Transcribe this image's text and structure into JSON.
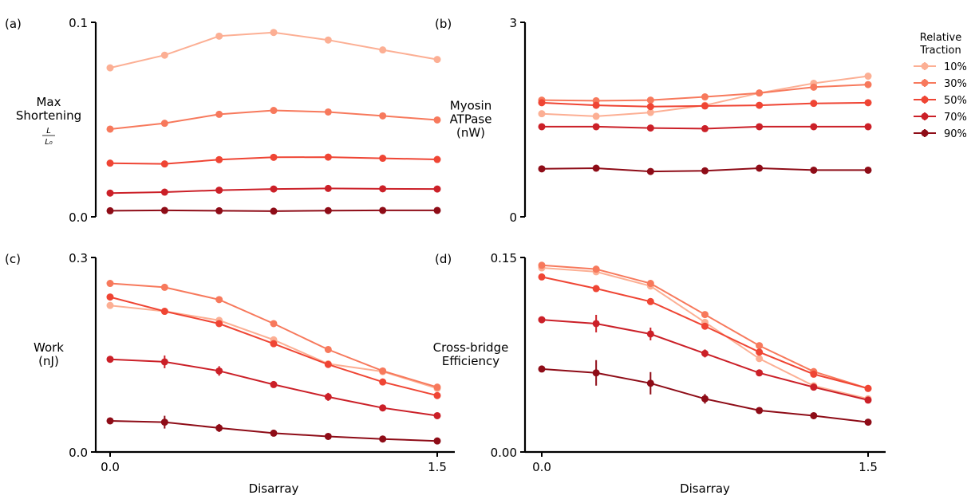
{
  "legend": {
    "title_line1": "Relative",
    "title_line2": "Traction",
    "entries": [
      "10%",
      "30%",
      "50%",
      "70%",
      "90%"
    ]
  },
  "colors": [
    "#fcaf94",
    "#f7795c",
    "#ef4534",
    "#cb2028",
    "#8e0c17"
  ],
  "chart_data": [
    {
      "type": "line",
      "panel_label": "(a)",
      "ylabel_lines": [
        "Max",
        "Shortening"
      ],
      "ylabel_fraction": {
        "numerator": "L",
        "denominator": "L₀"
      },
      "xlabel": "",
      "x": [
        0.0,
        0.25,
        0.5,
        0.75,
        1.0,
        1.25,
        1.5
      ],
      "xticks": [
        0.0,
        1.5
      ],
      "xtick_labels": [
        "",
        ""
      ],
      "ylim": [
        0.0,
        0.1
      ],
      "yticks": [
        0.0,
        0.1
      ],
      "ytick_labels": [
        "0.0",
        "0.1"
      ],
      "series": [
        {
          "name": "10%",
          "values": [
            0.0766,
            0.0831,
            0.0929,
            0.0948,
            0.0909,
            0.0858,
            0.0809
          ]
        },
        {
          "name": "30%",
          "values": [
            0.0451,
            0.0481,
            0.0527,
            0.0547,
            0.0539,
            0.0519,
            0.0498
          ]
        },
        {
          "name": "50%",
          "values": [
            0.0276,
            0.0272,
            0.0294,
            0.0306,
            0.0307,
            0.0301,
            0.0295
          ]
        },
        {
          "name": "70%",
          "values": [
            0.0122,
            0.0127,
            0.0137,
            0.0143,
            0.0146,
            0.0144,
            0.0143
          ]
        },
        {
          "name": "90%",
          "values": [
            0.0031,
            0.0033,
            0.0031,
            0.0029,
            0.0032,
            0.0033,
            0.0033
          ]
        }
      ]
    },
    {
      "type": "line",
      "panel_label": "(b)",
      "ylabel_lines": [
        "Myosin",
        "ATPase",
        "(nW)"
      ],
      "xlabel": "",
      "x": [
        0.0,
        0.25,
        0.5,
        0.75,
        1.0,
        1.25,
        1.5
      ],
      "xticks": [
        0.0,
        1.5
      ],
      "xtick_labels": [
        "",
        ""
      ],
      "ylim": [
        0,
        3
      ],
      "yticks": [
        0,
        3
      ],
      "ytick_labels": [
        "0",
        "3"
      ],
      "series": [
        {
          "name": "10%",
          "values": [
            1.59,
            1.55,
            1.61,
            1.72,
            1.91,
            2.06,
            2.17
          ]
        },
        {
          "name": "30%",
          "values": [
            1.8,
            1.79,
            1.8,
            1.85,
            1.91,
            2.0,
            2.04
          ]
        },
        {
          "name": "50%",
          "values": [
            1.76,
            1.72,
            1.7,
            1.71,
            1.72,
            1.75,
            1.76
          ]
        },
        {
          "name": "70%",
          "values": [
            1.39,
            1.39,
            1.37,
            1.36,
            1.39,
            1.39,
            1.39
          ]
        },
        {
          "name": "90%",
          "values": [
            0.74,
            0.75,
            0.7,
            0.71,
            0.75,
            0.72,
            0.72
          ]
        }
      ]
    },
    {
      "type": "line",
      "panel_label": "(c)",
      "ylabel_lines": [
        "Work",
        "(nJ)"
      ],
      "xlabel": "Disarray",
      "x": [
        0.0,
        0.25,
        0.5,
        0.75,
        1.0,
        1.25,
        1.5
      ],
      "xticks": [
        0.0,
        1.5
      ],
      "xtick_labels": [
        "0.0",
        "1.5"
      ],
      "ylim": [
        0.0,
        0.3
      ],
      "yticks": [
        0.0,
        0.3
      ],
      "ytick_labels": [
        "0.0",
        "0.3"
      ],
      "series": [
        {
          "name": "10%",
          "values": [
            0.226,
            0.217,
            0.203,
            0.173,
            0.136,
            0.124,
            0.098
          ]
        },
        {
          "name": "30%",
          "values": [
            0.26,
            0.254,
            0.235,
            0.198,
            0.158,
            0.125,
            0.1
          ]
        },
        {
          "name": "50%",
          "values": [
            0.239,
            0.217,
            0.198,
            0.167,
            0.135,
            0.108,
            0.087
          ]
        },
        {
          "name": "70%",
          "values": [
            0.143,
            0.139,
            0.125,
            0.104,
            0.085,
            0.068,
            0.056
          ]
        },
        {
          "name": "90%",
          "values": [
            0.048,
            0.046,
            0.037,
            0.029,
            0.024,
            0.02,
            0.017
          ]
        }
      ]
    },
    {
      "type": "line",
      "panel_label": "(d)",
      "ylabel_lines": [
        "Cross-bridge",
        "Efficiency"
      ],
      "xlabel": "Disarray",
      "x": [
        0.0,
        0.25,
        0.5,
        0.75,
        1.0,
        1.25,
        1.5
      ],
      "xticks": [
        0.0,
        1.5
      ],
      "xtick_labels": [
        "0.0",
        "1.5"
      ],
      "ylim": [
        0.0,
        0.15
      ],
      "yticks": [
        0.0,
        0.15
      ],
      "ytick_labels": [
        "0.00",
        "0.15"
      ],
      "series": [
        {
          "name": "10%",
          "values": [
            0.142,
            0.139,
            0.128,
            0.1,
            0.072,
            0.051,
            0.041
          ]
        },
        {
          "name": "30%",
          "values": [
            0.144,
            0.141,
            0.13,
            0.106,
            0.082,
            0.062,
            0.049
          ]
        },
        {
          "name": "50%",
          "values": [
            0.135,
            0.126,
            0.116,
            0.097,
            0.077,
            0.06,
            0.049
          ]
        },
        {
          "name": "70%",
          "values": [
            0.102,
            0.099,
            0.091,
            0.076,
            0.061,
            0.05,
            0.04
          ]
        },
        {
          "name": "90%",
          "values": [
            0.064,
            0.061,
            0.053,
            0.041,
            0.032,
            0.028,
            0.023
          ]
        }
      ]
    }
  ]
}
